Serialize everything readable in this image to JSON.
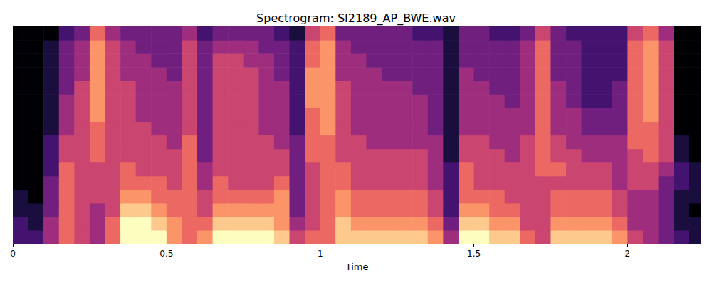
{
  "chart_data": {
    "type": "heatmap",
    "title": "Spectrogram: SI2189_AP_BWE.wav",
    "xlabel": "Time",
    "xlim": [
      0,
      2.24
    ],
    "xticks": [
      0,
      0.5,
      1,
      1.5,
      2
    ],
    "ylim": [
      0,
      8
    ],
    "tick_labels": "x",
    "grid": false,
    "colors": [
      "#000004",
      "#1c1044",
      "#4f127b",
      "#812581",
      "#b5367a",
      "#e55964",
      "#fb8761",
      "#fec287",
      "#fcfdbf"
    ],
    "zlim": [
      0,
      9
    ],
    "x_bins": [
      0,
      0.05,
      0.1,
      0.15,
      0.2,
      0.25,
      0.3,
      0.35,
      0.4,
      0.45,
      0.5,
      0.55,
      0.6,
      0.65,
      0.7,
      0.75,
      0.8,
      0.85,
      0.9,
      0.95,
      1.0,
      1.05,
      1.1,
      1.15,
      1.2,
      1.25,
      1.3,
      1.35,
      1.4,
      1.45,
      1.5,
      1.55,
      1.6,
      1.65,
      1.7,
      1.75,
      1.8,
      1.85,
      1.9,
      1.95,
      2.0,
      2.05,
      2.1,
      2.15,
      2.2,
      2.25
    ],
    "y_bins": [
      0,
      0.5,
      1,
      1.5,
      2,
      2.5,
      3,
      3.5,
      4,
      4.5,
      5,
      5.5,
      6,
      6.5,
      7,
      7.5,
      8
    ],
    "values": [
      [
        2,
        2,
        4,
        6,
        5,
        4,
        6,
        9,
        9,
        9,
        7,
        6,
        7,
        9,
        9,
        9,
        9,
        8,
        5,
        6,
        6,
        8,
        8,
        8,
        8,
        8,
        8,
        7,
        4,
        9,
        9,
        8,
        8,
        6,
        5,
        8,
        8,
        8,
        8,
        7,
        5,
        4,
        3,
        2,
        1
      ],
      [
        2,
        1,
        4,
        6,
        5,
        4,
        6,
        9,
        9,
        8,
        7,
        6,
        6,
        8,
        8,
        8,
        8,
        7,
        4,
        5,
        6,
        8,
        7,
        7,
        7,
        7,
        7,
        6,
        3,
        8,
        8,
        7,
        7,
        5,
        5,
        7,
        7,
        7,
        7,
        6,
        4,
        4,
        3,
        1,
        1
      ],
      [
        1,
        1,
        3,
        6,
        5,
        4,
        5,
        8,
        8,
        7,
        6,
        6,
        5,
        7,
        7,
        7,
        7,
        7,
        3,
        5,
        6,
        7,
        6,
        6,
        6,
        6,
        6,
        5,
        2,
        7,
        7,
        6,
        6,
        5,
        5,
        6,
        6,
        6,
        6,
        5,
        4,
        4,
        3,
        1,
        0
      ],
      [
        1,
        0,
        3,
        6,
        5,
        5,
        5,
        7,
        7,
        6,
        6,
        6,
        5,
        6,
        6,
        6,
        6,
        7,
        3,
        5,
        6,
        7,
        6,
        6,
        6,
        6,
        6,
        5,
        2,
        6,
        6,
        6,
        5,
        5,
        5,
        6,
        6,
        6,
        6,
        5,
        4,
        4,
        3,
        1,
        1
      ],
      [
        0,
        0,
        3,
        6,
        5,
        5,
        5,
        6,
        6,
        6,
        5,
        6,
        4,
        6,
        5,
        5,
        5,
        6,
        3,
        5,
        6,
        6,
        5,
        5,
        5,
        5,
        5,
        4,
        2,
        6,
        5,
        5,
        5,
        5,
        5,
        5,
        5,
        5,
        5,
        4,
        5,
        5,
        3,
        2,
        1
      ],
      [
        0,
        0,
        2,
        6,
        5,
        5,
        5,
        6,
        5,
        5,
        5,
        6,
        4,
        5,
        5,
        5,
        5,
        5,
        3,
        5,
        6,
        6,
        5,
        5,
        5,
        5,
        5,
        4,
        2,
        6,
        5,
        5,
        5,
        5,
        6,
        6,
        5,
        5,
        5,
        4,
        5,
        5,
        4,
        2,
        1
      ],
      [
        0,
        0,
        2,
        5,
        5,
        6,
        5,
        5,
        5,
        5,
        5,
        6,
        3,
        5,
        5,
        5,
        5,
        5,
        3,
        6,
        6,
        5,
        5,
        5,
        5,
        5,
        5,
        4,
        1,
        5,
        5,
        5,
        4,
        5,
        6,
        5,
        5,
        4,
        4,
        4,
        5,
        6,
        5,
        1,
        0
      ],
      [
        0,
        0,
        2,
        5,
        5,
        6,
        5,
        5,
        5,
        5,
        4,
        6,
        3,
        5,
        5,
        5,
        5,
        4,
        3,
        6,
        6,
        5,
        5,
        4,
        4,
        4,
        4,
        4,
        1,
        5,
        5,
        4,
        4,
        5,
        6,
        5,
        4,
        4,
        4,
        4,
        6,
        6,
        5,
        1,
        0
      ],
      [
        0,
        0,
        1,
        4,
        5,
        6,
        5,
        5,
        5,
        4,
        4,
        5,
        3,
        5,
        5,
        5,
        4,
        4,
        2,
        6,
        7,
        5,
        4,
        4,
        4,
        4,
        4,
        3,
        1,
        4,
        4,
        4,
        4,
        4,
        6,
        4,
        4,
        3,
        3,
        3,
        6,
        6,
        5,
        0,
        0
      ],
      [
        0,
        0,
        1,
        4,
        5,
        7,
        5,
        5,
        4,
        4,
        4,
        5,
        3,
        5,
        5,
        5,
        4,
        4,
        2,
        6,
        7,
        5,
        4,
        4,
        4,
        4,
        4,
        3,
        1,
        4,
        4,
        4,
        4,
        4,
        6,
        4,
        4,
        3,
        3,
        3,
        6,
        7,
        5,
        0,
        0
      ],
      [
        0,
        0,
        1,
        4,
        5,
        7,
        5,
        5,
        4,
        4,
        4,
        5,
        3,
        5,
        5,
        5,
        4,
        4,
        2,
        7,
        7,
        5,
        4,
        4,
        4,
        4,
        4,
        3,
        1,
        4,
        4,
        4,
        3,
        4,
        6,
        4,
        3,
        2,
        2,
        3,
        6,
        7,
        5,
        0,
        0
      ],
      [
        0,
        0,
        1,
        3,
        5,
        7,
        5,
        5,
        4,
        4,
        4,
        5,
        3,
        5,
        5,
        5,
        4,
        4,
        2,
        7,
        7,
        5,
        4,
        4,
        4,
        4,
        3,
        3,
        1,
        4,
        4,
        3,
        3,
        4,
        6,
        4,
        3,
        2,
        2,
        3,
        6,
        7,
        5,
        0,
        0
      ],
      [
        0,
        0,
        1,
        3,
        4,
        7,
        5,
        4,
        4,
        4,
        3,
        5,
        3,
        5,
        5,
        5,
        4,
        3,
        2,
        7,
        7,
        4,
        4,
        4,
        3,
        3,
        3,
        3,
        1,
        4,
        3,
        3,
        3,
        4,
        6,
        3,
        3,
        2,
        2,
        2,
        6,
        7,
        5,
        0,
        0
      ],
      [
        0,
        0,
        1,
        3,
        4,
        7,
        5,
        4,
        4,
        3,
        3,
        5,
        3,
        5,
        5,
        4,
        4,
        3,
        2,
        6,
        7,
        4,
        4,
        3,
        3,
        3,
        3,
        3,
        1,
        3,
        3,
        3,
        3,
        4,
        6,
        3,
        3,
        2,
        2,
        2,
        6,
        7,
        5,
        0,
        0
      ],
      [
        0,
        0,
        1,
        3,
        4,
        7,
        5,
        4,
        3,
        3,
        3,
        5,
        3,
        4,
        4,
        4,
        3,
        3,
        2,
        6,
        7,
        4,
        3,
        3,
        3,
        3,
        3,
        3,
        1,
        3,
        3,
        3,
        3,
        4,
        6,
        3,
        3,
        2,
        2,
        2,
        6,
        7,
        5,
        0,
        0
      ],
      [
        0,
        0,
        0,
        2,
        3,
        6,
        4,
        3,
        3,
        3,
        3,
        4,
        2,
        3,
        3,
        3,
        3,
        2,
        1,
        5,
        6,
        3,
        3,
        3,
        3,
        3,
        2,
        2,
        1,
        3,
        3,
        2,
        2,
        3,
        5,
        3,
        2,
        2,
        2,
        2,
        5,
        6,
        4,
        0,
        0
      ]
    ]
  }
}
